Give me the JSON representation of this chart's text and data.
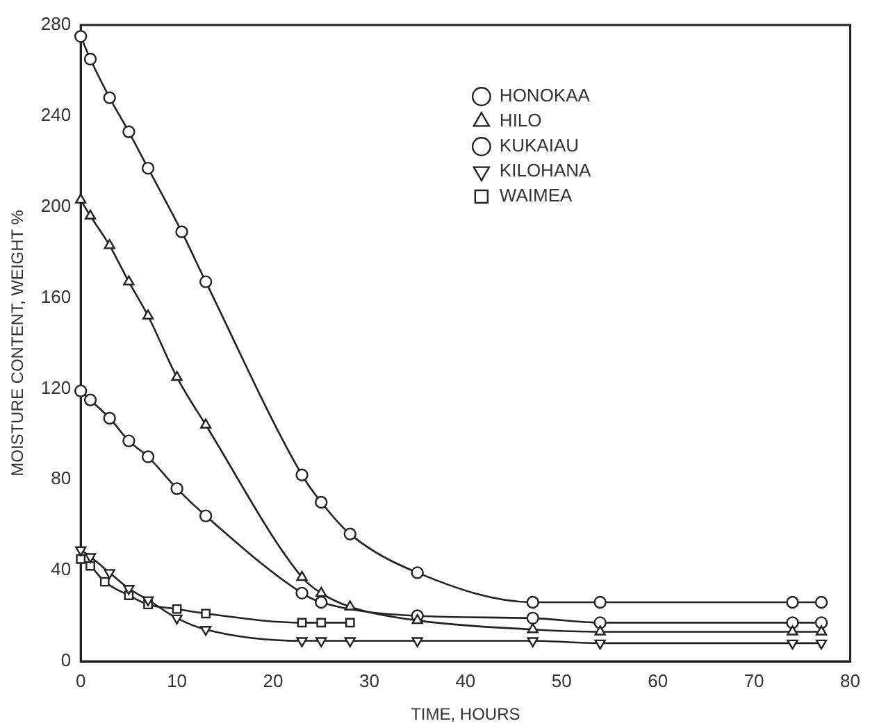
{
  "chart_data": {
    "type": "line",
    "xlabel": "TIME, HOURS",
    "ylabel": "MOISTURE CONTENT, WEIGHT %",
    "xlim": [
      0,
      80
    ],
    "xticks": [
      0,
      10,
      20,
      30,
      40,
      50,
      60,
      70,
      80
    ],
    "ylim": [
      0,
      280
    ],
    "yticks": [
      0,
      40,
      80,
      120,
      160,
      200,
      240,
      280
    ],
    "grid": false,
    "legend": "top right",
    "line_style": "solid",
    "series": [
      {
        "name": "HONOKAA",
        "color": "#222222",
        "marker": "circle",
        "x": [
          0,
          1,
          3,
          5,
          7,
          10.5,
          13,
          23,
          25,
          28,
          35,
          47,
          54,
          74,
          77
        ],
        "values": [
          275,
          265,
          248,
          233,
          217,
          189,
          167,
          82,
          70,
          56,
          39,
          26,
          26,
          26,
          26
        ]
      },
      {
        "name": "HILO",
        "color": "#222222",
        "marker": "triangle",
        "x": [
          0,
          1,
          3,
          5,
          7,
          10,
          13,
          23,
          25,
          28,
          35,
          47,
          54,
          74,
          77
        ],
        "values": [
          203,
          196,
          183,
          167,
          152,
          125,
          104,
          37,
          30,
          24,
          18,
          14,
          13,
          13,
          13
        ]
      },
      {
        "name": "KUKAIAU",
        "color": "#222222",
        "marker": "circle",
        "x": [
          0,
          1,
          3,
          5,
          7,
          10,
          13,
          23,
          25,
          35,
          47,
          54,
          74,
          77
        ],
        "values": [
          119,
          115,
          107,
          97,
          90,
          76,
          64,
          30,
          26,
          20,
          19,
          17,
          17,
          17
        ]
      },
      {
        "name": "KILOHANA",
        "color": "#222222",
        "marker": "triangle-down",
        "x": [
          0,
          1,
          3,
          5,
          7,
          10,
          13,
          23,
          25,
          28,
          35,
          47,
          54,
          74,
          77
        ],
        "values": [
          49,
          46,
          39,
          32,
          27,
          19,
          14,
          9,
          9,
          9,
          9,
          9,
          8,
          8,
          8
        ]
      },
      {
        "name": "WAIMEA",
        "color": "#222222",
        "marker": "square",
        "x": [
          0,
          1,
          2.5,
          5,
          7,
          10,
          13,
          23,
          25,
          28
        ],
        "values": [
          45,
          42,
          35,
          29,
          25,
          23,
          21,
          17,
          17,
          17
        ]
      }
    ]
  }
}
